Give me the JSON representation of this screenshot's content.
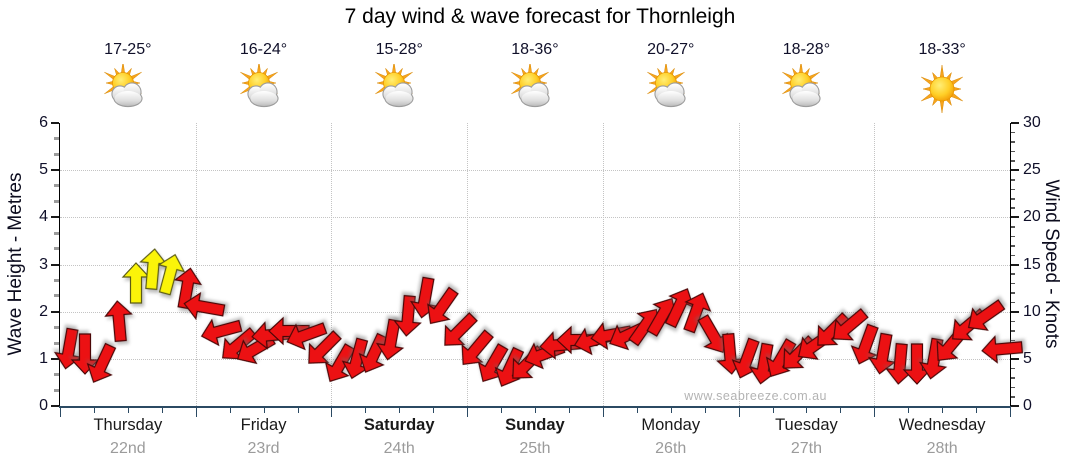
{
  "title": "7 day wind & wave forecast for Thornleigh",
  "watermark": "www.seabreeze.com.au",
  "left_axis": {
    "label": "Wave Height - Metres",
    "min": 0,
    "max": 6,
    "ticks": [
      0,
      1,
      2,
      3,
      4,
      5,
      6
    ]
  },
  "right_axis": {
    "label": "Wind Speed - Knots",
    "min": 0,
    "max": 30,
    "ticks": [
      0,
      5,
      10,
      15,
      20,
      25,
      30
    ]
  },
  "days": [
    {
      "name": "Thursday",
      "date": "22nd",
      "temp": "17-25°",
      "icon": "sun-cloud",
      "bold": false
    },
    {
      "name": "Friday",
      "date": "23rd",
      "temp": "16-24°",
      "icon": "sun-cloud",
      "bold": false
    },
    {
      "name": "Saturday",
      "date": "24th",
      "temp": "15-28°",
      "icon": "sun-cloud",
      "bold": true
    },
    {
      "name": "Sunday",
      "date": "25th",
      "temp": "18-36°",
      "icon": "sun-cloud",
      "bold": true
    },
    {
      "name": "Monday",
      "date": "26th",
      "temp": "20-27°",
      "icon": "sun-cloud",
      "bold": false
    },
    {
      "name": "Tuesday",
      "date": "27th",
      "temp": "18-28°",
      "icon": "sun-cloud",
      "bold": false
    },
    {
      "name": "Wednesday",
      "date": "28th",
      "temp": "18-33°",
      "icon": "sun",
      "bold": false
    }
  ],
  "colors": {
    "arrow_red": "#ec1113",
    "arrow_yellow": "#fbf409",
    "arrow_red_outline": "#4a0606",
    "arrow_yellow_outline": "#5c5c16",
    "grid": "#c4c4c4",
    "x_axis_line": "#2b4a63",
    "tick_major": "#1a1a1a",
    "tick_minor_left": "#9c9c9c",
    "tick_minor_right": "#555555",
    "axis_text": "#10102a",
    "date_text": "#9b9b9b",
    "day_text": "#1a1a1a",
    "watermark_text": "#b3b3b3"
  },
  "chart_data": {
    "type": "wind-arrows",
    "title": "7 day wind & wave forecast for Thornleigh",
    "x_range_days": 7,
    "points_per_day": 8,
    "y_axis_wind_knots": [
      0,
      30
    ],
    "y_axis_wave_metres": [
      0,
      6
    ],
    "dir_note": "degrees clockwise of on-screen arrow heading, 0 = pointing up",
    "points": [
      {
        "knots": 6,
        "dir": 190,
        "color": "red"
      },
      {
        "knots": 5.5,
        "dir": 180,
        "color": "red"
      },
      {
        "knots": 4.5,
        "dir": 205,
        "color": "red"
      },
      {
        "knots": 9,
        "dir": 355,
        "color": "red"
      },
      {
        "knots": 13,
        "dir": 0,
        "color": "yellow"
      },
      {
        "knots": 14.5,
        "dir": 5,
        "color": "yellow"
      },
      {
        "knots": 14,
        "dir": 15,
        "color": "yellow"
      },
      {
        "knots": 12.5,
        "dir": 10,
        "color": "red"
      },
      {
        "knots": 10.5,
        "dir": 280,
        "color": "red"
      },
      {
        "knots": 8,
        "dir": 255,
        "color": "red"
      },
      {
        "knots": 6.5,
        "dir": 230,
        "color": "red"
      },
      {
        "knots": 6,
        "dir": 240,
        "color": "red"
      },
      {
        "knots": 7.5,
        "dir": 265,
        "color": "red"
      },
      {
        "knots": 8,
        "dir": 270,
        "color": "red"
      },
      {
        "knots": 7.5,
        "dir": 250,
        "color": "red"
      },
      {
        "knots": 6,
        "dir": 225,
        "color": "red"
      },
      {
        "knots": 4.5,
        "dir": 210,
        "color": "red"
      },
      {
        "knots": 5,
        "dir": 195,
        "color": "red"
      },
      {
        "knots": 5.5,
        "dir": 205,
        "color": "red"
      },
      {
        "knots": 7,
        "dir": 190,
        "color": "red"
      },
      {
        "knots": 9.5,
        "dir": 185,
        "color": "red"
      },
      {
        "knots": 11.5,
        "dir": 190,
        "color": "red"
      },
      {
        "knots": 10.5,
        "dir": 215,
        "color": "red"
      },
      {
        "knots": 8,
        "dir": 225,
        "color": "red"
      },
      {
        "knots": 6,
        "dir": 220,
        "color": "red"
      },
      {
        "knots": 4.5,
        "dir": 210,
        "color": "red"
      },
      {
        "knots": 4,
        "dir": 205,
        "color": "red"
      },
      {
        "knots": 4.5,
        "dir": 225,
        "color": "red"
      },
      {
        "knots": 5.5,
        "dir": 250,
        "color": "red"
      },
      {
        "knots": 6.5,
        "dir": 265,
        "color": "red"
      },
      {
        "knots": 7,
        "dir": 270,
        "color": "red"
      },
      {
        "knots": 7,
        "dir": 255,
        "color": "red"
      },
      {
        "knots": 7.5,
        "dir": 260,
        "color": "red"
      },
      {
        "knots": 7.5,
        "dir": 245,
        "color": "red"
      },
      {
        "knots": 8.5,
        "dir": 35,
        "color": "red"
      },
      {
        "knots": 9.5,
        "dir": 30,
        "color": "red"
      },
      {
        "knots": 10.5,
        "dir": 25,
        "color": "red"
      },
      {
        "knots": 10,
        "dir": 20,
        "color": "red"
      },
      {
        "knots": 7.5,
        "dir": 150,
        "color": "red"
      },
      {
        "knots": 5.5,
        "dir": 175,
        "color": "red"
      },
      {
        "knots": 5,
        "dir": 200,
        "color": "red"
      },
      {
        "knots": 4.5,
        "dir": 190,
        "color": "red"
      },
      {
        "knots": 5,
        "dir": 210,
        "color": "red"
      },
      {
        "knots": 5.5,
        "dir": 225,
        "color": "red"
      },
      {
        "knots": 6.5,
        "dir": 235,
        "color": "red"
      },
      {
        "knots": 8,
        "dir": 225,
        "color": "red"
      },
      {
        "knots": 8.5,
        "dir": 230,
        "color": "red"
      },
      {
        "knots": 6.5,
        "dir": 200,
        "color": "red"
      },
      {
        "knots": 5.5,
        "dir": 190,
        "color": "red"
      },
      {
        "knots": 4.5,
        "dir": 185,
        "color": "red"
      },
      {
        "knots": 4.5,
        "dir": 180,
        "color": "red"
      },
      {
        "knots": 5,
        "dir": 190,
        "color": "red"
      },
      {
        "knots": 6.5,
        "dir": 220,
        "color": "red"
      },
      {
        "knots": 8.5,
        "dir": 230,
        "color": "red"
      },
      {
        "knots": 9.5,
        "dir": 235,
        "color": "red"
      },
      {
        "knots": 6,
        "dir": 265,
        "color": "red"
      }
    ]
  }
}
